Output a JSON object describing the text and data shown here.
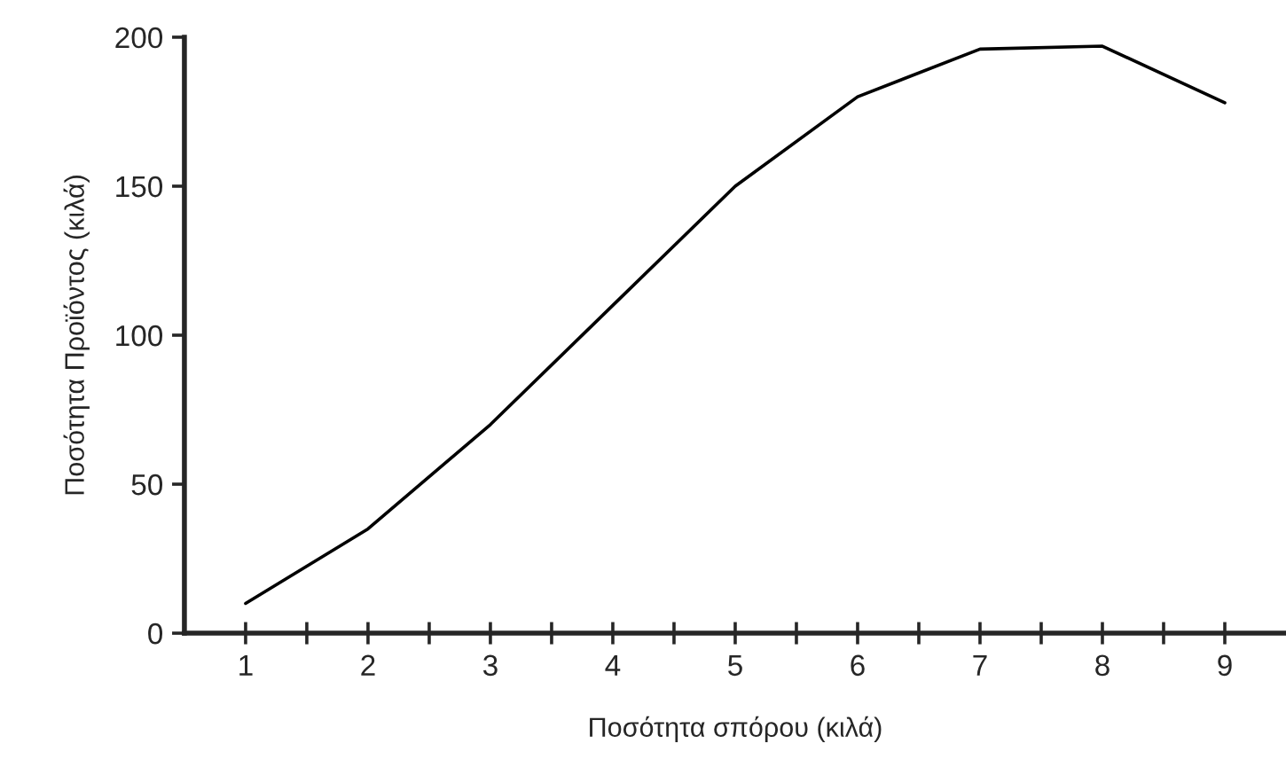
{
  "chart_data": {
    "type": "line",
    "xlabel": "Ποσότητα σπόρου (κιλά)",
    "ylabel": "Ποσότητα Προϊόντος (κιλά)",
    "x": [
      1,
      2,
      3,
      4,
      5,
      6,
      7,
      8,
      9
    ],
    "series": [
      {
        "color": "#000000",
        "values": [
          10,
          35,
          70,
          110,
          150,
          180,
          196,
          197,
          178
        ]
      }
    ],
    "xlim": [
      0.5,
      9.5
    ],
    "xticks": [
      1,
      {
        "value": 1.5,
        "label": null
      },
      2,
      {
        "value": 2.5,
        "label": null
      },
      3,
      {
        "value": 3.5,
        "label": null
      },
      4,
      {
        "value": 4.5,
        "label": null
      },
      5,
      {
        "value": 5.5,
        "label": null
      },
      6,
      {
        "value": 6.5,
        "label": null
      },
      7,
      {
        "value": 7.5,
        "label": null
      },
      8,
      {
        "value": 8.5,
        "label": null
      },
      9
    ],
    "ylim": [
      0,
      200
    ],
    "yticks": [
      0,
      50,
      100,
      150,
      200
    ],
    "grid": false,
    "legend": false,
    "marker": "none",
    "line_style": "solid"
  }
}
